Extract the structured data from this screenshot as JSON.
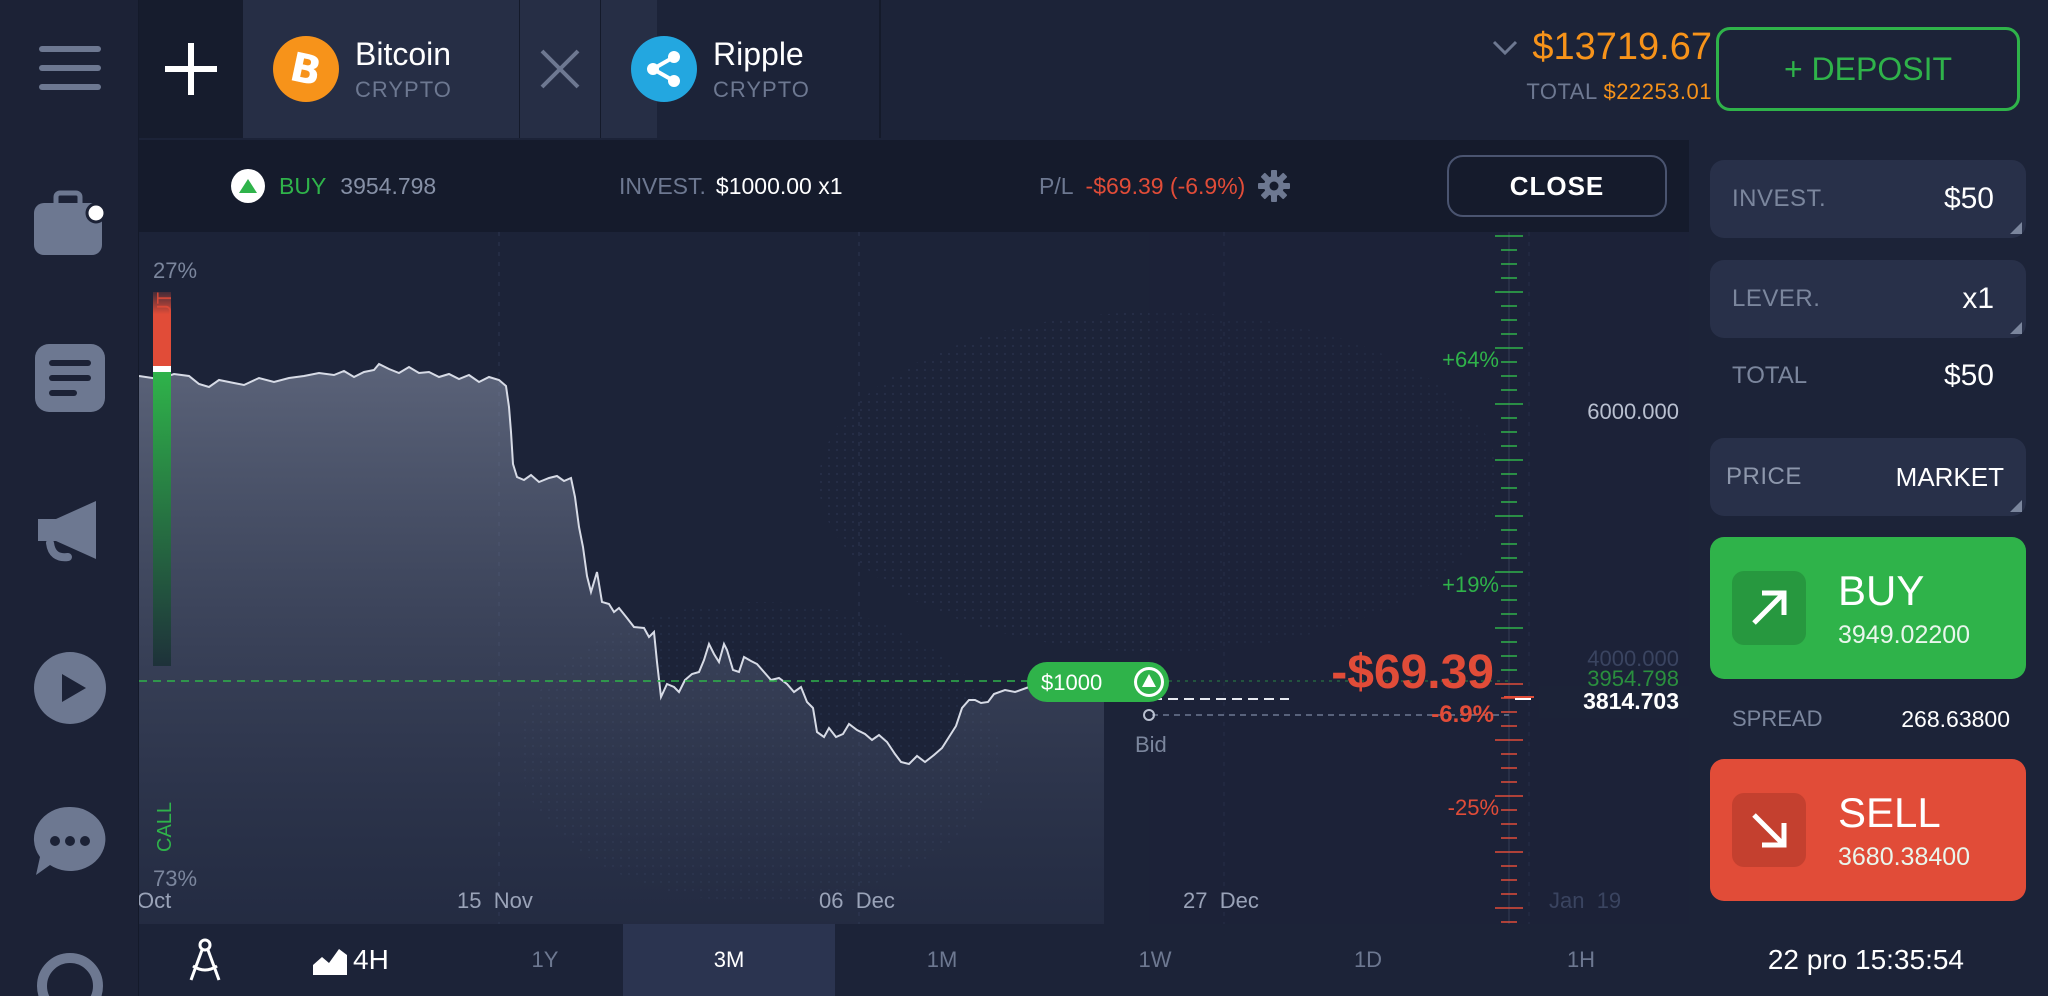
{
  "tabs": [
    {
      "name": "Bitcoin",
      "type": "CRYPTO",
      "active": true
    },
    {
      "name": "Ripple",
      "type": "CRYPTO",
      "active": false
    }
  ],
  "balance": {
    "amount": "$13719.67",
    "total_label": "TOTAL",
    "total_value": "$22253.01"
  },
  "deposit_label": "+ DEPOSIT",
  "position": {
    "direction": "BUY",
    "open_price": "3954.798",
    "invest_label": "INVEST.",
    "invest_value": "$1000.00 x1",
    "pl_label": "P/L",
    "pl_value": "-$69.39 (-6.9%)",
    "close_label": "CLOSE"
  },
  "chart": {
    "sentiment_put_pct": "27%",
    "sentiment_call_pct": "73%",
    "sentiment_put_label": "PUT",
    "sentiment_call_label": "CALL",
    "x_labels": [
      "Oct",
      "15  Nov",
      "06  Dec",
      "27  Dec",
      "Jan  19"
    ],
    "price_labels": [
      "6000.000",
      "4000.000",
      "3954.798"
    ],
    "current_price": "3814.703",
    "pct_labels": [
      "+64%",
      "+19%",
      "-25%"
    ],
    "deal_marker": "$1000",
    "pl_big": "-$69.39",
    "pl_pct": "-6.9%",
    "bid_label": "Bid",
    "colors": {
      "up": "#2fb34a",
      "down": "#e14c38"
    }
  },
  "side": {
    "invest_label": "INVEST.",
    "invest_value": "$50",
    "leverage_label": "LEVER.",
    "leverage_value": "x1",
    "total_label": "TOTAL",
    "total_value": "$50",
    "price_label": "PRICE",
    "price_value": "MARKET",
    "buy_label": "BUY",
    "buy_price": "3949.02200",
    "spread_label": "SPREAD",
    "spread_value": "268.63800",
    "sell_label": "SELL",
    "sell_price": "3680.38400"
  },
  "bottom": {
    "chart_period": "4H",
    "timeframes": [
      "1Y",
      "3M",
      "1M",
      "1W",
      "1D",
      "1H"
    ],
    "active_timeframe": "3M",
    "clock": "22 pro 15:35:54"
  }
}
